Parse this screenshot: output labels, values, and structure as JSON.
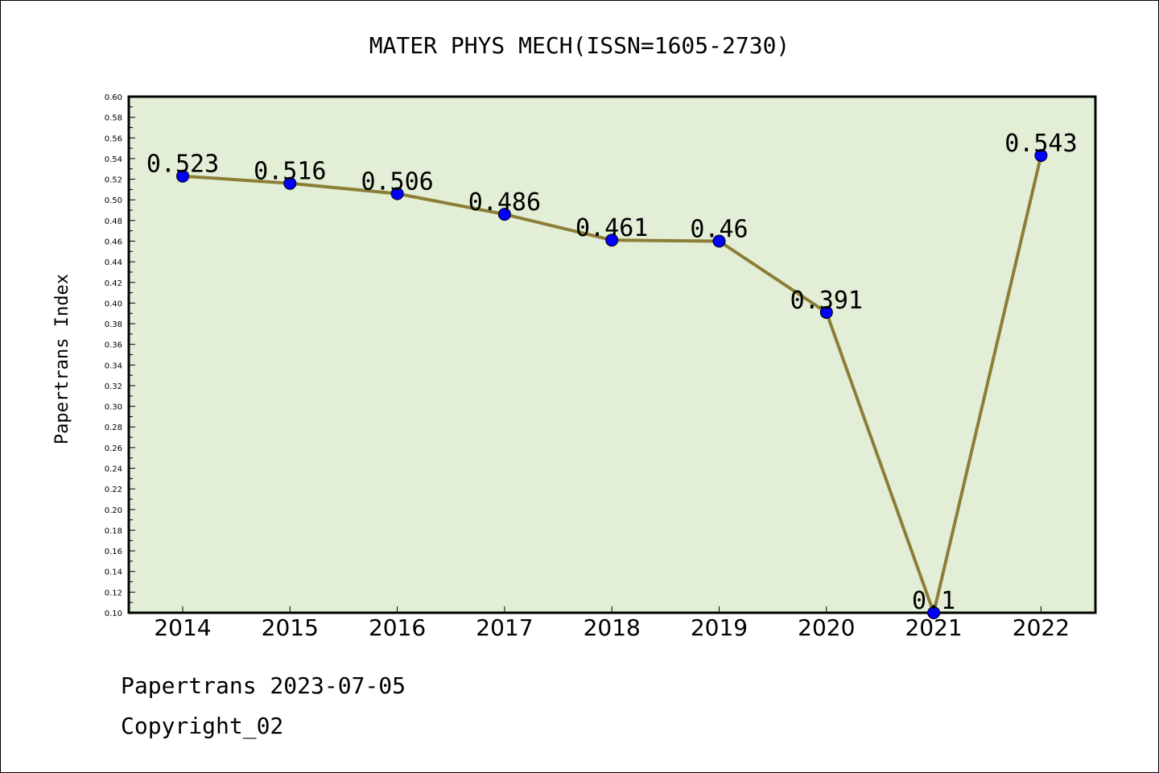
{
  "chart_data": {
    "type": "line",
    "title": "MATER PHYS MECH(ISSN=1605-2730)",
    "xlabel": "",
    "ylabel": "Papertrans Index",
    "categories": [
      "2014",
      "2015",
      "2016",
      "2017",
      "2018",
      "2019",
      "2020",
      "2021",
      "2022"
    ],
    "series": [
      {
        "values": [
          0.523,
          0.516,
          0.506,
          0.486,
          0.461,
          0.46,
          0.391,
          0.1,
          0.543
        ]
      }
    ],
    "data_labels": [
      "0.523",
      "0.516",
      "0.506",
      "0.486",
      "0.461",
      "0.46",
      "0.391",
      "0.1",
      "0.543"
    ],
    "ylim": [
      0.1,
      0.6
    ],
    "yticks": [
      "0.10",
      "0.12",
      "0.14",
      "0.16",
      "0.18",
      "0.20",
      "0.22",
      "0.24",
      "0.26",
      "0.28",
      "0.30",
      "0.32",
      "0.34",
      "0.36",
      "0.38",
      "0.40",
      "0.42",
      "0.44",
      "0.46",
      "0.48",
      "0.50",
      "0.52",
      "0.54",
      "0.56",
      "0.58",
      "0.60"
    ],
    "grid": false,
    "colors": {
      "plot_bg": "#e2efd6",
      "line": "#8c7e37",
      "marker": "#0000ff"
    }
  },
  "footer": {
    "line1": "Papertrans 2023-07-05",
    "line2": "Copyright_02"
  }
}
